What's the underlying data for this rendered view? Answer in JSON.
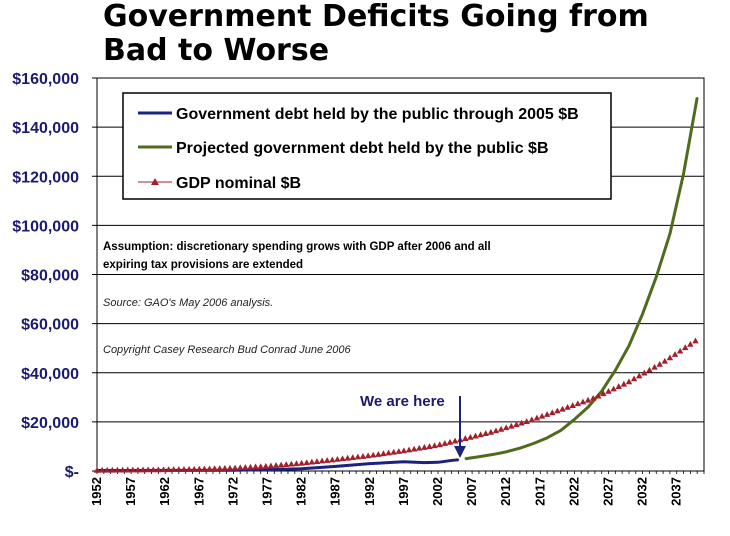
{
  "chart_data": {
    "type": "line",
    "title": "Government Deficits Going from Bad to Worse",
    "xlabel": "",
    "ylabel": "",
    "xlim": [
      1952,
      2041
    ],
    "ylim": [
      0,
      160000
    ],
    "y_ticks": [
      0,
      20000,
      40000,
      60000,
      80000,
      100000,
      120000,
      140000,
      160000
    ],
    "y_tick_labels": [
      "$-",
      "$20,000",
      "$40,000",
      "$60,000",
      "$80,000",
      "$100,000",
      "$120,000",
      "$140,000",
      "$160,000"
    ],
    "x_tick_labels": [
      "1952",
      "1957",
      "1962",
      "1967",
      "1972",
      "1977",
      "1982",
      "1987",
      "1992",
      "1997",
      "2002",
      "2007",
      "2012",
      "2017",
      "2022",
      "2027",
      "2032",
      "2037"
    ],
    "grid": true,
    "legend_position": "top",
    "series": [
      {
        "name": "Government debt held by the public through 2005 $B",
        "color": "#1a237e",
        "marker": "none",
        "x": [
          1952,
          1957,
          1962,
          1967,
          1972,
          1977,
          1982,
          1987,
          1992,
          1997,
          2000,
          2002,
          2004,
          2005
        ],
        "y": [
          215,
          225,
          250,
          270,
          320,
          550,
          920,
          1900,
          3000,
          3770,
          3400,
          3540,
          4300,
          4600
        ]
      },
      {
        "name": "Projected government debt held by the public $B",
        "color": "#4f6b1e",
        "marker": "none",
        "x": [
          2006,
          2008,
          2010,
          2012,
          2014,
          2016,
          2018,
          2020,
          2022,
          2024,
          2026,
          2028,
          2030,
          2032,
          2034,
          2036,
          2038,
          2040
        ],
        "y": [
          5000,
          5800,
          6700,
          7800,
          9300,
          11200,
          13500,
          16500,
          21000,
          26000,
          32500,
          41000,
          51000,
          64000,
          79000,
          96500,
          121000,
          152000
        ]
      },
      {
        "name": "GDP nominal $B",
        "color": "#a31f2b",
        "marker": "triangle",
        "x": [
          1952,
          1957,
          1962,
          1967,
          1972,
          1977,
          1982,
          1987,
          1992,
          1997,
          2002,
          2005,
          2010,
          2015,
          2020,
          2025,
          2030,
          2035,
          2040
        ],
        "y": [
          360,
          470,
          600,
          830,
          1240,
          2030,
          3250,
          4740,
          6340,
          8300,
          10600,
          12600,
          16000,
          20200,
          25000,
          29900,
          36400,
          44300,
          53500
        ]
      }
    ],
    "annotations": [
      "Assumption: discretionary spending grows with GDP after 2006 and all",
      "expiring tax provisions are extended",
      "Source:  GAO's May 2006 analysis.",
      "Copyright  Casey Research  Bud Conrad  June 2006",
      "We are here"
    ]
  }
}
